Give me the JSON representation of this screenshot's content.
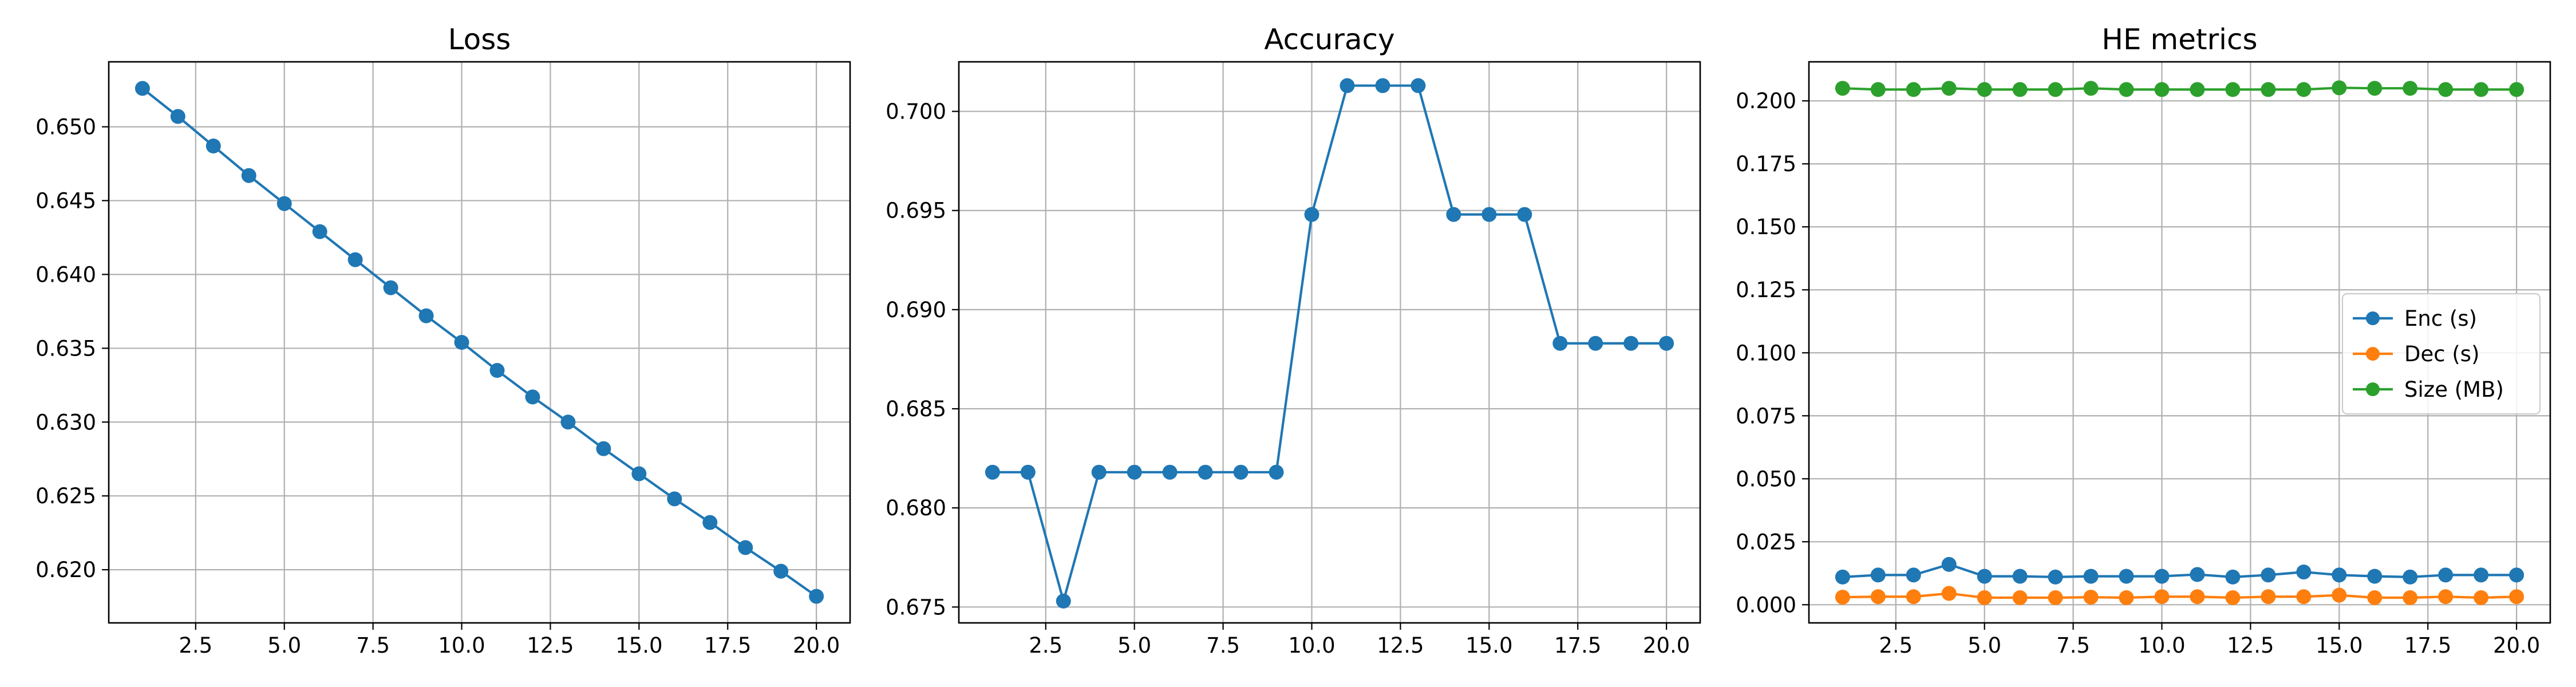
{
  "colors": {
    "blue": "#1f77b4",
    "orange": "#ff7f0e",
    "green": "#2ca02c"
  },
  "chart_data": [
    {
      "type": "line",
      "title": "Loss",
      "xlabel": "",
      "ylabel": "",
      "grid": true,
      "xlim": [
        0.05,
        20.95
      ],
      "ylim": [
        0.6164,
        0.6544
      ],
      "xticks": [
        2.5,
        5.0,
        7.5,
        10.0,
        12.5,
        15.0,
        17.5,
        20.0
      ],
      "xtick_labels": [
        "2.5",
        "5.0",
        "7.5",
        "10.0",
        "12.5",
        "15.0",
        "17.5",
        "20.0"
      ],
      "yticks": [
        0.62,
        0.625,
        0.63,
        0.635,
        0.64,
        0.645,
        0.65
      ],
      "ytick_labels": [
        "0.620",
        "0.625",
        "0.630",
        "0.635",
        "0.640",
        "0.645",
        "0.650"
      ],
      "x": [
        1,
        2,
        3,
        4,
        5,
        6,
        7,
        8,
        9,
        10,
        11,
        12,
        13,
        14,
        15,
        16,
        17,
        18,
        19,
        20
      ],
      "series": [
        {
          "color": "#1f77b4",
          "marker": "circle",
          "values": [
            0.6526,
            0.6507,
            0.6487,
            0.6467,
            0.6448,
            0.6429,
            0.641,
            0.6391,
            0.6372,
            0.6354,
            0.6335,
            0.6317,
            0.63,
            0.6282,
            0.6265,
            0.6248,
            0.6232,
            0.6215,
            0.6199,
            0.6182
          ]
        }
      ]
    },
    {
      "type": "line",
      "title": "Accuracy",
      "xlabel": "",
      "ylabel": "",
      "grid": true,
      "xlim": [
        0.05,
        20.95
      ],
      "ylim": [
        0.6742,
        0.7025
      ],
      "xticks": [
        2.5,
        5.0,
        7.5,
        10.0,
        12.5,
        15.0,
        17.5,
        20.0
      ],
      "xtick_labels": [
        "2.5",
        "5.0",
        "7.5",
        "10.0",
        "12.5",
        "15.0",
        "17.5",
        "20.0"
      ],
      "yticks": [
        0.675,
        0.68,
        0.685,
        0.69,
        0.695,
        0.7
      ],
      "ytick_labels": [
        "0.675",
        "0.680",
        "0.685",
        "0.690",
        "0.695",
        "0.700"
      ],
      "x": [
        1,
        2,
        3,
        4,
        5,
        6,
        7,
        8,
        9,
        10,
        11,
        12,
        13,
        14,
        15,
        16,
        17,
        18,
        19,
        20
      ],
      "series": [
        {
          "color": "#1f77b4",
          "marker": "circle",
          "values": [
            0.6818,
            0.6818,
            0.6753,
            0.6818,
            0.6818,
            0.6818,
            0.6818,
            0.6818,
            0.6818,
            0.6948,
            0.7013,
            0.7013,
            0.7013,
            0.6948,
            0.6948,
            0.6948,
            0.6883,
            0.6883,
            0.6883,
            0.6883
          ]
        }
      ]
    },
    {
      "type": "line",
      "title": "HE metrics",
      "xlabel": "",
      "ylabel": "",
      "grid": true,
      "legend_position": "center-right",
      "xlim": [
        0.05,
        20.95
      ],
      "ylim": [
        -0.0072,
        0.2155
      ],
      "xticks": [
        2.5,
        5.0,
        7.5,
        10.0,
        12.5,
        15.0,
        17.5,
        20.0
      ],
      "xtick_labels": [
        "2.5",
        "5.0",
        "7.5",
        "10.0",
        "12.5",
        "15.0",
        "17.5",
        "20.0"
      ],
      "yticks": [
        0.0,
        0.025,
        0.05,
        0.075,
        0.1,
        0.125,
        0.15,
        0.175,
        0.2
      ],
      "ytick_labels": [
        "0.000",
        "0.025",
        "0.050",
        "0.075",
        "0.100",
        "0.125",
        "0.150",
        "0.175",
        "0.200"
      ],
      "x": [
        1,
        2,
        3,
        4,
        5,
        6,
        7,
        8,
        9,
        10,
        11,
        12,
        13,
        14,
        15,
        16,
        17,
        18,
        19,
        20
      ],
      "series": [
        {
          "name": "Enc (s)",
          "color": "#1f77b4",
          "marker": "circle",
          "values": [
            0.011,
            0.0118,
            0.0118,
            0.016,
            0.0113,
            0.0113,
            0.011,
            0.0113,
            0.0113,
            0.0113,
            0.012,
            0.011,
            0.0118,
            0.013,
            0.0118,
            0.0113,
            0.011,
            0.0118,
            0.0118,
            0.0118
          ]
        },
        {
          "name": "Dec (s)",
          "color": "#ff7f0e",
          "marker": "circle",
          "values": [
            0.003,
            0.0032,
            0.0032,
            0.0045,
            0.0028,
            0.0028,
            0.0028,
            0.003,
            0.0028,
            0.0032,
            0.0032,
            0.0028,
            0.0032,
            0.0032,
            0.0038,
            0.0028,
            0.0028,
            0.0032,
            0.0028,
            0.0032
          ]
        },
        {
          "name": "Size (MB)",
          "color": "#2ca02c",
          "marker": "circle",
          "values": [
            0.205,
            0.2045,
            0.2045,
            0.205,
            0.2045,
            0.2045,
            0.2045,
            0.205,
            0.2045,
            0.2045,
            0.2045,
            0.2045,
            0.2045,
            0.2045,
            0.2052,
            0.205,
            0.205,
            0.2045,
            0.2045,
            0.2045
          ]
        }
      ]
    }
  ]
}
